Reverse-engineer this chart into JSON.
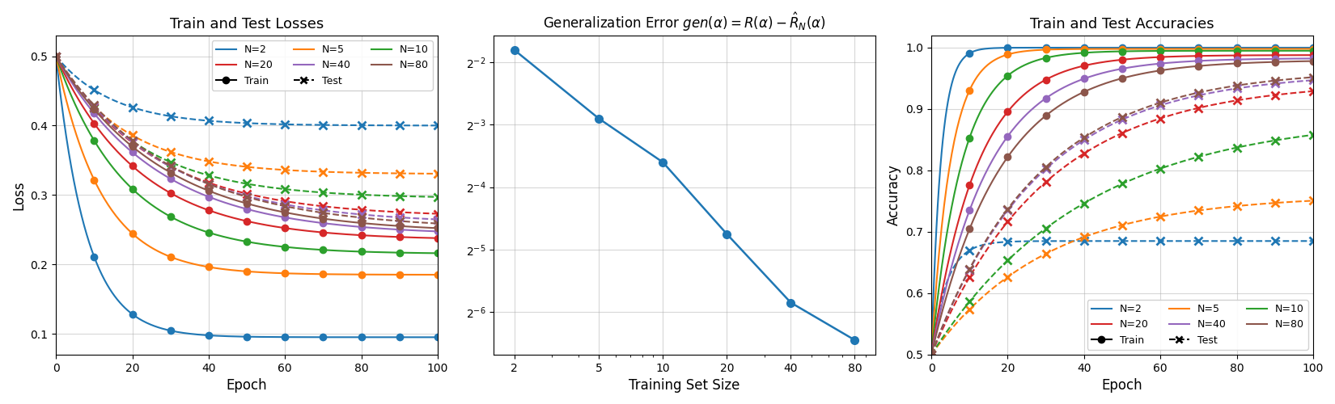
{
  "N_values": [
    2,
    5,
    10,
    20,
    40,
    80
  ],
  "colors": {
    "2": "#1f77b4",
    "5": "#ff7f0e",
    "10": "#2ca02c",
    "20": "#d62728",
    "40": "#9467bd",
    "80": "#8c564b"
  },
  "gen_error_x": [
    2,
    5,
    10,
    20,
    40,
    80
  ],
  "title1": "Train and Test Losses",
  "title3": "Train and Test Accuracies",
  "xlabel1": "Epoch",
  "xlabel2": "Training Set Size",
  "xlabel3": "Epoch",
  "ylabel1": "Loss",
  "ylabel3": "Accuracy",
  "train_loss_params": {
    "2": {
      "final": 0.095,
      "tau": 8
    },
    "5": {
      "final": 0.185,
      "tau": 12
    },
    "10": {
      "final": 0.215,
      "tau": 18
    },
    "20": {
      "final": 0.235,
      "tau": 22
    },
    "40": {
      "final": 0.242,
      "tau": 26
    },
    "80": {
      "final": 0.245,
      "tau": 28
    }
  },
  "test_loss_params": {
    "2": {
      "final": 0.4,
      "tau": 15
    },
    "5": {
      "final": 0.33,
      "tau": 18
    },
    "10": {
      "final": 0.295,
      "tau": 22
    },
    "20": {
      "final": 0.268,
      "tau": 26
    },
    "40": {
      "final": 0.258,
      "tau": 28
    },
    "80": {
      "final": 0.25,
      "tau": 30
    }
  },
  "train_acc_params": {
    "2": {
      "final": 1.0,
      "tau": 2.5
    },
    "5": {
      "final": 0.998,
      "tau": 5
    },
    "10": {
      "final": 0.995,
      "tau": 8
    },
    "20": {
      "final": 0.988,
      "tau": 12
    },
    "40": {
      "final": 0.983,
      "tau": 15
    },
    "80": {
      "final": 0.98,
      "tau": 18
    }
  },
  "test_acc_params": {
    "2": {
      "final": 0.685,
      "tau": 4
    },
    "5": {
      "final": 0.76,
      "tau": 30
    },
    "10": {
      "final": 0.89,
      "tau": 40
    },
    "20": {
      "final": 0.945,
      "tau": 30
    },
    "40": {
      "final": 0.96,
      "tau": 28
    },
    "80": {
      "final": 0.965,
      "tau": 28
    }
  },
  "loss_ylim": [
    0.07,
    0.53
  ],
  "acc_ylim": [
    0.5,
    1.02
  ],
  "marker_epochs": [
    0,
    10,
    20,
    30,
    40,
    50,
    60,
    70,
    80,
    90,
    100
  ]
}
